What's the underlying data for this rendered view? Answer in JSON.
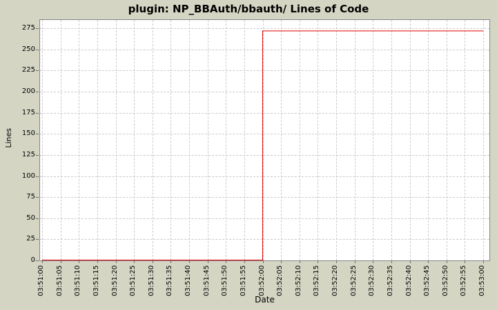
{
  "chart_data": {
    "type": "line",
    "title": "plugin: NP_BBAuth/bbauth/ Lines of Code",
    "xlabel": "Date",
    "ylabel": "Lines",
    "x_ticks": [
      "03:51:00",
      "03:51:05",
      "03:51:10",
      "03:51:15",
      "03:51:20",
      "03:51:25",
      "03:51:30",
      "03:51:35",
      "03:51:40",
      "03:51:45",
      "03:51:50",
      "03:51:55",
      "03:52:00",
      "03:52:05",
      "03:52:10",
      "03:52:15",
      "03:52:20",
      "03:52:25",
      "03:52:30",
      "03:52:35",
      "03:52:40",
      "03:52:45",
      "03:52:50",
      "03:52:55",
      "03:53:00"
    ],
    "y_ticks": [
      0,
      25,
      50,
      75,
      100,
      125,
      150,
      175,
      200,
      225,
      250,
      275
    ],
    "ylim": [
      0,
      285
    ],
    "grid": true,
    "legend": "none",
    "series": [
      {
        "name": "Lines of Code",
        "color": "#e00000",
        "points": [
          {
            "x": "03:51:00",
            "y": 0
          },
          {
            "x": "03:52:00",
            "y": 0
          },
          {
            "x": "03:52:00",
            "y": 272
          },
          {
            "x": "03:53:00",
            "y": 272
          }
        ]
      }
    ],
    "colors": {
      "background": "#d4d5c3",
      "plot_background": "#ffffff",
      "plot_border": "#848484",
      "grid": "#c9c9c9",
      "tick": "#6e6e6e",
      "text": "#000000"
    }
  }
}
